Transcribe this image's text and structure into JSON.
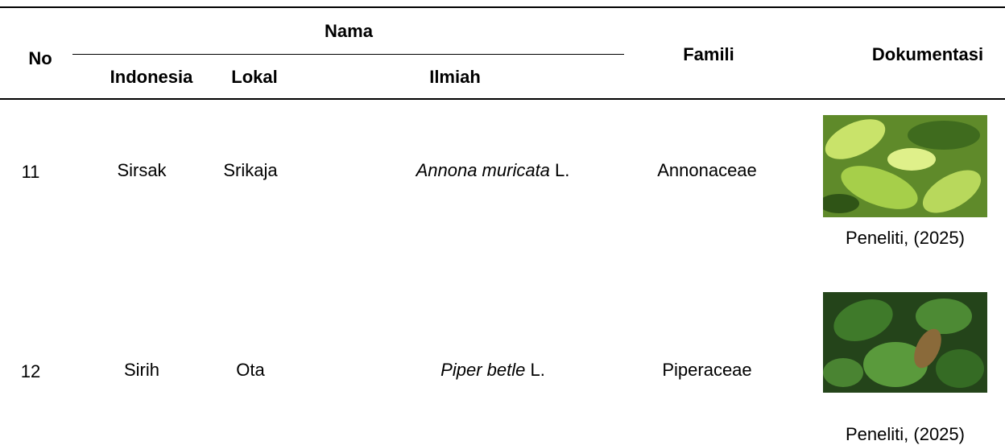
{
  "table": {
    "header": {
      "no": "No",
      "nama": "Nama",
      "indonesia": "Indonesia",
      "lokal": "Lokal",
      "ilmiah": "Ilmiah",
      "famili": "Famili",
      "dokumentasi": "Dokumentasi"
    },
    "rows": [
      {
        "no": "11",
        "indonesia": "Sirsak",
        "lokal": "Srikaja",
        "ilmiah": {
          "italic": "Annona muricata",
          "author": "L."
        },
        "famili": "Annonaceae",
        "caption": "Peneliti, (2025)"
      },
      {
        "no": "12",
        "indonesia": "Sirih",
        "lokal": "Ota",
        "ilmiah": {
          "italic": "Piper betle",
          "author": "L."
        },
        "famili": "Piperaceae",
        "caption": "Peneliti, (2025)"
      }
    ]
  }
}
